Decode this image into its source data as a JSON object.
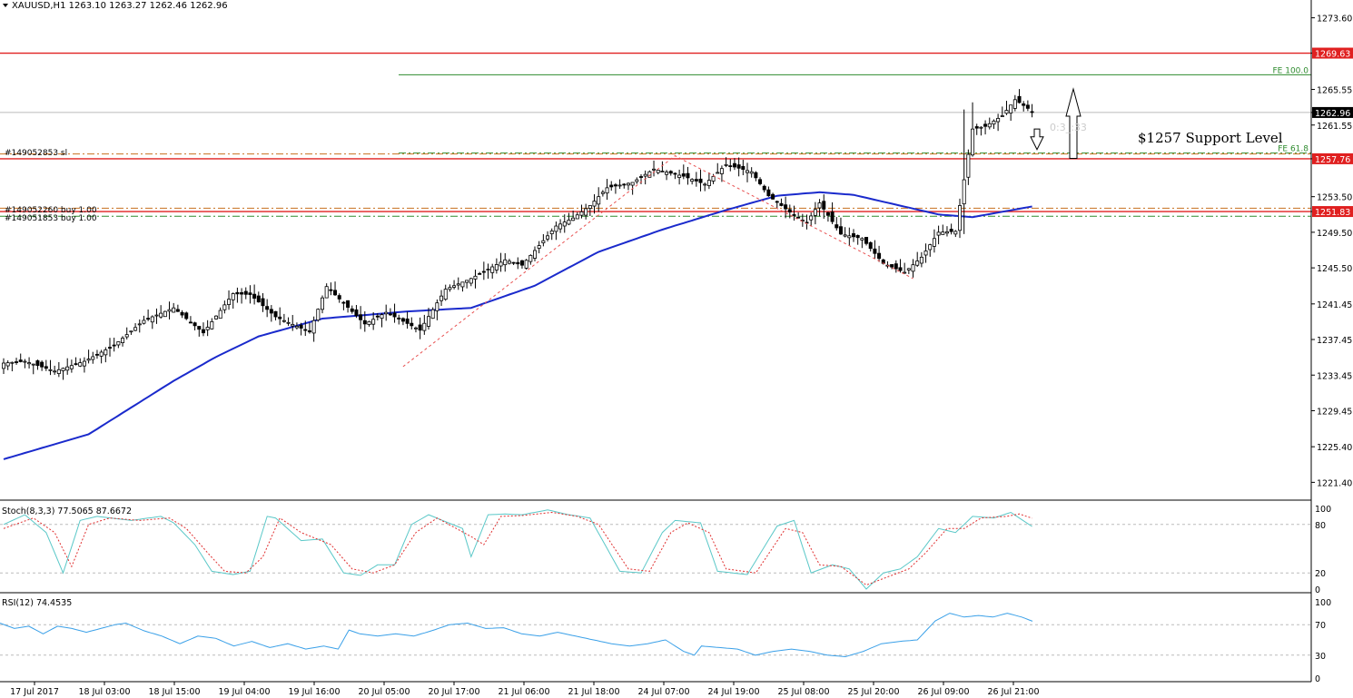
{
  "header": {
    "menu_icon": "dropdown-triangle-icon",
    "symbol_info": "XAUUSD,H1  1263.10 1263.27 1262.46 1262.96"
  },
  "annotation_text": "$1257 Support Level",
  "order_labels": {
    "sl": "#149052853 sl",
    "buy1": "#149052260 buy 1.00",
    "buy2": "#149051853 buy 1.00",
    "timer_overlay": "0:3_:33"
  },
  "colors": {
    "background": "#ffffff",
    "axis": "#000000",
    "candle_up": "#ffffff",
    "candle_down": "#000000",
    "ma_line": "#1a2acc",
    "red_line": "#e02020",
    "orange_dash": "#c8701e",
    "green_line": "#2e8b2e",
    "stoch_main": "#5bc8c8",
    "stoch_signal": "#e03030",
    "rsi_line": "#3aa0e8",
    "fib_dash": "#e85050",
    "price_badge_red": "#e02020",
    "price_badge_black": "#000000"
  },
  "chart_data": [
    {
      "type": "candlestick",
      "title": "XAUUSD,H1",
      "ylim": [
        1219.4,
        1275.6
      ],
      "yticks": [
        "1273.60",
        "1269.63",
        "1265.55",
        "1262.96",
        "1261.55",
        "1257.76",
        "1253.50",
        "1251.83",
        "1249.50",
        "1245.50",
        "1241.45",
        "1237.45",
        "1233.45",
        "1229.45",
        "1225.40",
        "1221.40"
      ],
      "xticks": [
        "17 Jul 2017",
        "18 Jul 03:00",
        "18 Jul 15:00",
        "19 Jul 04:00",
        "19 Jul 16:00",
        "20 Jul 05:00",
        "20 Jul 17:00",
        "21 Jul 06:00",
        "21 Jul 18:00",
        "24 Jul 07:00",
        "24 Jul 19:00",
        "25 Jul 08:00",
        "25 Jul 20:00",
        "26 Jul 09:00",
        "26 Jul 21:00"
      ],
      "anchors": [
        [
          0,
          1234.8
        ],
        [
          5,
          1235.0
        ],
        [
          12,
          1233.9
        ],
        [
          19,
          1235.0
        ],
        [
          26,
          1236.8
        ],
        [
          33,
          1239.6
        ],
        [
          40,
          1241.0
        ],
        [
          47,
          1238.2
        ],
        [
          54,
          1242.6
        ],
        [
          58,
          1242.5
        ],
        [
          64,
          1240.0
        ],
        [
          72,
          1238.3
        ],
        [
          76,
          1243.4
        ],
        [
          85,
          1239.2
        ],
        [
          90,
          1240.5
        ],
        [
          98,
          1238.5
        ],
        [
          104,
          1243.1
        ],
        [
          110,
          1244.3
        ],
        [
          118,
          1246.4
        ],
        [
          122,
          1245.8
        ],
        [
          130,
          1250.2
        ],
        [
          134,
          1251.1
        ],
        [
          138,
          1252.5
        ],
        [
          142,
          1254.5
        ],
        [
          148,
          1255.1
        ],
        [
          153,
          1256.6
        ],
        [
          160,
          1255.8
        ],
        [
          165,
          1254.9
        ],
        [
          170,
          1257.1
        ],
        [
          176,
          1256.3
        ],
        [
          180,
          1253.6
        ],
        [
          186,
          1251.4
        ],
        [
          189,
          1250.6
        ],
        [
          192,
          1252.8
        ],
        [
          197,
          1249.3
        ],
        [
          202,
          1248.8
        ],
        [
          207,
          1246.0
        ],
        [
          212,
          1245.0
        ],
        [
          216,
          1246.7
        ],
        [
          220,
          1249.5
        ],
        [
          224,
          1249.6
        ],
        [
          226,
          1255.4
        ],
        [
          228,
          1261.1
        ],
        [
          231,
          1261.4
        ],
        [
          235,
          1262.6
        ],
        [
          238,
          1264.4
        ],
        [
          242,
          1263.1
        ]
      ],
      "last_price": 1262.96,
      "moving_average": [
        [
          0,
          1224.0
        ],
        [
          20,
          1226.8
        ],
        [
          30,
          1229.8
        ],
        [
          40,
          1232.8
        ],
        [
          50,
          1235.5
        ],
        [
          60,
          1237.8
        ],
        [
          75,
          1239.8
        ],
        [
          95,
          1240.6
        ],
        [
          110,
          1241.0
        ],
        [
          125,
          1243.5
        ],
        [
          140,
          1247.3
        ],
        [
          155,
          1249.8
        ],
        [
          170,
          1252.0
        ],
        [
          182,
          1253.6
        ],
        [
          192,
          1254.0
        ],
        [
          200,
          1253.7
        ],
        [
          210,
          1252.6
        ],
        [
          220,
          1251.5
        ],
        [
          228,
          1251.2
        ],
        [
          235,
          1251.8
        ],
        [
          242,
          1252.4
        ]
      ],
      "horizontal_lines": [
        {
          "label": "1269.63",
          "price": 1269.63,
          "style": "solid",
          "color": "red_line"
        },
        {
          "label": "FE 100.0",
          "price": 1267.2,
          "style": "solid",
          "color": "green_line"
        },
        {
          "label": "1262.96",
          "price": 1262.96,
          "style": "solid",
          "color": "grey"
        },
        {
          "label": "FE 61.8",
          "price": 1258.4,
          "style": "dashdot",
          "color": "green_line"
        },
        {
          "label": "1257.76",
          "price": 1257.76,
          "style": "solid",
          "color": "red_line"
        },
        {
          "label": "sl",
          "price": 1258.3,
          "style": "dashdot",
          "color": "orange_dash"
        },
        {
          "label": "1251.83",
          "price": 1251.83,
          "style": "solid",
          "color": "red_line"
        },
        {
          "label": "buy-2260",
          "price": 1252.2,
          "style": "dashdot",
          "color": "orange_dash"
        },
        {
          "label": "buy-1853",
          "price": 1251.3,
          "style": "dashdot",
          "color": "green_line"
        }
      ],
      "fib_zigzag": [
        [
          94,
          1234.4
        ],
        [
          158,
          1258.1
        ],
        [
          214,
          1244.3
        ]
      ],
      "arrows": [
        {
          "direction": "up",
          "from": 1257.8,
          "to": 1265.6
        },
        {
          "direction": "down",
          "from": 1261.1,
          "to": 1258.8
        }
      ]
    },
    {
      "type": "line",
      "title": "Stoch(8,3,3) 77.5065 87.6672",
      "ylim": [
        0,
        100
      ],
      "yticks": [
        "100",
        "80",
        "20",
        "0"
      ],
      "levels": [
        80,
        20
      ],
      "series": [
        {
          "name": "main",
          "color": "stoch_main",
          "anchors": [
            [
              0,
              80
            ],
            [
              5,
              92
            ],
            [
              10,
              70
            ],
            [
              14,
              20
            ],
            [
              18,
              85
            ],
            [
              22,
              90
            ],
            [
              30,
              85
            ],
            [
              37,
              90
            ],
            [
              40,
              82
            ],
            [
              45,
              55
            ],
            [
              49,
              22
            ],
            [
              54,
              18
            ],
            [
              58,
              22
            ],
            [
              62,
              90
            ],
            [
              64,
              88
            ],
            [
              70,
              60
            ],
            [
              75,
              62
            ],
            [
              80,
              20
            ],
            [
              84,
              17
            ],
            [
              88,
              30
            ],
            [
              92,
              30
            ],
            [
              96,
              80
            ],
            [
              100,
              92
            ],
            [
              108,
              75
            ],
            [
              110,
              40
            ],
            [
              114,
              92
            ],
            [
              118,
              93
            ],
            [
              122,
              92
            ],
            [
              128,
              98
            ],
            [
              133,
              92
            ],
            [
              138,
              88
            ],
            [
              145,
              22
            ],
            [
              150,
              20
            ],
            [
              155,
              70
            ],
            [
              158,
              85
            ],
            [
              164,
              82
            ],
            [
              168,
              22
            ],
            [
              175,
              18
            ],
            [
              182,
              78
            ],
            [
              186,
              85
            ],
            [
              190,
              20
            ],
            [
              195,
              30
            ],
            [
              199,
              25
            ],
            [
              203,
              0
            ],
            [
              207,
              20
            ],
            [
              211,
              25
            ],
            [
              215,
              40
            ],
            [
              220,
              75
            ],
            [
              224,
              70
            ],
            [
              228,
              90
            ],
            [
              233,
              88
            ],
            [
              237,
              95
            ],
            [
              242,
              77.5
            ]
          ]
        },
        {
          "name": "signal",
          "color": "stoch_signal",
          "anchors": [
            [
              0,
              75
            ],
            [
              7,
              88
            ],
            [
              12,
              70
            ],
            [
              16,
              28
            ],
            [
              20,
              80
            ],
            [
              25,
              88
            ],
            [
              32,
              85
            ],
            [
              39,
              88
            ],
            [
              43,
              75
            ],
            [
              48,
              45
            ],
            [
              52,
              22
            ],
            [
              57,
              20
            ],
            [
              61,
              40
            ],
            [
              65,
              88
            ],
            [
              70,
              70
            ],
            [
              77,
              55
            ],
            [
              82,
              25
            ],
            [
              87,
              20
            ],
            [
              92,
              30
            ],
            [
              97,
              70
            ],
            [
              102,
              88
            ],
            [
              110,
              65
            ],
            [
              113,
              55
            ],
            [
              117,
              90
            ],
            [
              122,
              91
            ],
            [
              129,
              95
            ],
            [
              135,
              90
            ],
            [
              140,
              80
            ],
            [
              147,
              25
            ],
            [
              152,
              22
            ],
            [
              157,
              70
            ],
            [
              161,
              82
            ],
            [
              166,
              70
            ],
            [
              170,
              25
            ],
            [
              177,
              20
            ],
            [
              184,
              75
            ],
            [
              188,
              70
            ],
            [
              192,
              30
            ],
            [
              197,
              28
            ],
            [
              203,
              5
            ],
            [
              208,
              15
            ],
            [
              213,
              25
            ],
            [
              217,
              45
            ],
            [
              222,
              75
            ],
            [
              226,
              75
            ],
            [
              230,
              88
            ],
            [
              236,
              90
            ],
            [
              239,
              93
            ],
            [
              242,
              87.7
            ]
          ]
        }
      ]
    },
    {
      "type": "line",
      "title": "RSI(12) 74.4535",
      "ylim": [
        0,
        100
      ],
      "yticks": [
        "100",
        "70",
        "30",
        "0"
      ],
      "levels": [
        70
      ],
      "series": [
        {
          "name": "rsi",
          "color": "rsi_line",
          "anchors": [
            [
              0,
              72
            ],
            [
              4,
              65
            ],
            [
              8,
              68
            ],
            [
              12,
              58
            ],
            [
              16,
              68
            ],
            [
              20,
              65
            ],
            [
              24,
              60
            ],
            [
              28,
              65
            ],
            [
              32,
              70
            ],
            [
              35,
              72
            ],
            [
              40,
              62
            ],
            [
              45,
              55
            ],
            [
              50,
              45
            ],
            [
              55,
              55
            ],
            [
              60,
              52
            ],
            [
              65,
              42
            ],
            [
              70,
              48
            ],
            [
              75,
              40
            ],
            [
              80,
              45
            ],
            [
              85,
              38
            ],
            [
              90,
              42
            ],
            [
              94,
              38
            ],
            [
              97,
              63
            ],
            [
              100,
              58
            ],
            [
              105,
              55
            ],
            [
              110,
              58
            ],
            [
              115,
              55
            ],
            [
              120,
              62
            ],
            [
              125,
              70
            ],
            [
              130,
              72
            ],
            [
              135,
              65
            ],
            [
              140,
              66
            ],
            [
              145,
              58
            ],
            [
              150,
              55
            ],
            [
              155,
              60
            ],
            [
              160,
              55
            ],
            [
              165,
              50
            ],
            [
              170,
              45
            ],
            [
              175,
              42
            ],
            [
              180,
              45
            ],
            [
              185,
              50
            ],
            [
              190,
              35
            ],
            [
              193,
              30
            ],
            [
              195,
              42
            ],
            [
              200,
              40
            ],
            [
              205,
              38
            ],
            [
              210,
              30
            ],
            [
              215,
              35
            ],
            [
              220,
              38
            ],
            [
              225,
              35
            ],
            [
              230,
              30
            ],
            [
              235,
              28
            ],
            [
              240,
              35
            ],
            [
              245,
              45
            ],
            [
              250,
              48
            ],
            [
              255,
              50
            ],
            [
              260,
              75
            ],
            [
              264,
              85
            ],
            [
              268,
              80
            ],
            [
              272,
              82
            ],
            [
              276,
              80
            ],
            [
              280,
              85
            ],
            [
              284,
              80
            ],
            [
              287,
              74.5
            ]
          ]
        }
      ]
    }
  ]
}
